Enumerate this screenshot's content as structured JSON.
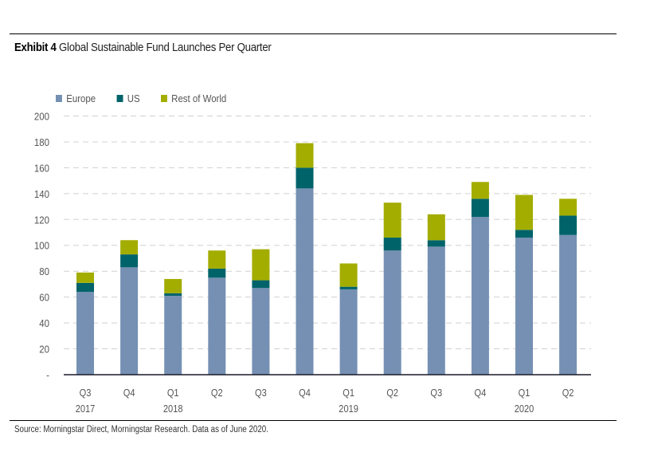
{
  "header": {
    "exhibit_label": "Exhibit 4",
    "title": "Global Sustainable Fund Launches Per Quarter"
  },
  "footer": {
    "source": "Source: Morningstar Direct, Morningstar Research. Data as of June 2020."
  },
  "colors": {
    "Europe": "#7590b3",
    "US": "#00636a",
    "Rest of World": "#a3ad00",
    "grid": "#d0d0d0",
    "axis": "#1a1a2a"
  },
  "chart_data": {
    "type": "bar",
    "stacked": true,
    "title": "Exhibit 4 Global Sustainable Fund Launches Per Quarter",
    "xlabel": "",
    "ylabel": "",
    "ylim": [
      0,
      200
    ],
    "yticks": [
      0,
      20,
      40,
      60,
      80,
      100,
      120,
      140,
      160,
      180,
      200
    ],
    "ytick_labels": [
      "-",
      "20",
      "40",
      "60",
      "80",
      "100",
      "120",
      "140",
      "160",
      "180",
      "200"
    ],
    "grid": true,
    "legend_position": "top-left",
    "categories": [
      "Q3 2017",
      "Q4 2017",
      "Q1 2018",
      "Q2 2018",
      "Q3 2018",
      "Q4 2018",
      "Q1 2019",
      "Q2 2019",
      "Q3 2019",
      "Q4 2019",
      "Q1 2020",
      "Q2 2020"
    ],
    "category_labels": [
      {
        "quarter": "Q3",
        "year": "2017"
      },
      {
        "quarter": "Q4",
        "year": ""
      },
      {
        "quarter": "Q1",
        "year": "2018"
      },
      {
        "quarter": "Q2",
        "year": ""
      },
      {
        "quarter": "Q3",
        "year": ""
      },
      {
        "quarter": "Q4",
        "year": ""
      },
      {
        "quarter": "Q1",
        "year": "2019"
      },
      {
        "quarter": "Q2",
        "year": ""
      },
      {
        "quarter": "Q3",
        "year": ""
      },
      {
        "quarter": "Q4",
        "year": ""
      },
      {
        "quarter": "Q1",
        "year": "2020"
      },
      {
        "quarter": "Q2",
        "year": ""
      }
    ],
    "series": [
      {
        "name": "Europe",
        "values": [
          64,
          83,
          61,
          75,
          67,
          144,
          66,
          96,
          99,
          122,
          106,
          108
        ]
      },
      {
        "name": "US",
        "values": [
          7,
          10,
          2,
          7,
          6,
          16,
          2,
          10,
          5,
          14,
          6,
          15
        ]
      },
      {
        "name": "Rest of World",
        "values": [
          8,
          11,
          11,
          14,
          24,
          19,
          18,
          27,
          20,
          13,
          27,
          13
        ]
      }
    ]
  }
}
